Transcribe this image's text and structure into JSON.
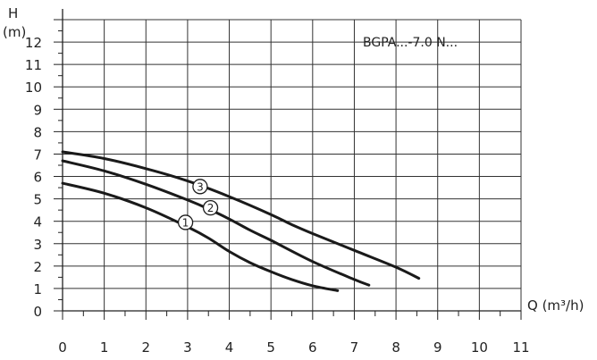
{
  "chart_data": {
    "type": "line",
    "title": "",
    "model_label": "BGPA...-7.0 N...",
    "xlabel": "Q (m³/h)",
    "ylabel_top": "H",
    "ylabel_unit": "(m)",
    "xlim": [
      0,
      11
    ],
    "ylim": [
      0,
      13
    ],
    "x_ticks": [
      0,
      1,
      2,
      3,
      4,
      5,
      6,
      7,
      8,
      9,
      10,
      11
    ],
    "y_ticks": [
      0,
      1,
      2,
      3,
      4,
      5,
      6,
      7,
      8,
      9,
      10,
      11,
      12
    ],
    "grid": true,
    "series": [
      {
        "name": "1",
        "x": [
          0,
          1,
          2,
          3,
          3.5,
          4,
          4.5,
          5,
          5.5,
          6,
          6.6
        ],
        "y": [
          5.7,
          5.25,
          4.6,
          3.75,
          3.25,
          2.65,
          2.15,
          1.75,
          1.4,
          1.12,
          0.9
        ],
        "marker_at": [
          2.95,
          3.95
        ]
      },
      {
        "name": "2",
        "x": [
          0,
          1,
          2,
          3,
          3.5,
          4,
          4.5,
          5,
          6,
          7,
          7.35
        ],
        "y": [
          6.7,
          6.25,
          5.65,
          4.95,
          4.55,
          4.1,
          3.6,
          3.15,
          2.2,
          1.4,
          1.15
        ],
        "marker_at": [
          3.55,
          4.6
        ]
      },
      {
        "name": "3",
        "x": [
          0,
          1,
          2,
          3,
          4,
          5,
          5.5,
          6,
          7,
          8,
          8.55
        ],
        "y": [
          7.1,
          6.8,
          6.35,
          5.8,
          5.1,
          4.3,
          3.85,
          3.45,
          2.7,
          1.95,
          1.45
        ],
        "marker_at": [
          3.3,
          5.55
        ]
      }
    ]
  }
}
